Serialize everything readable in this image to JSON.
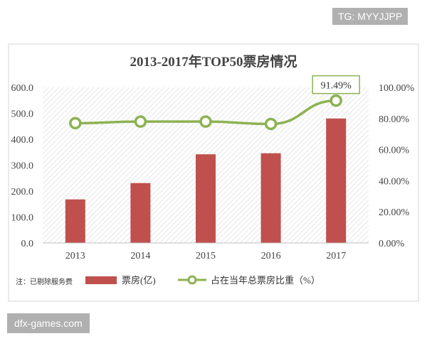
{
  "watermarks": {
    "top": "TG: MYYJJPP",
    "bottom": "dfx-games.com"
  },
  "chart_data": {
    "type": "bar+line",
    "title": "2013-2017年TOP50票房情况",
    "categories": [
      "2013",
      "2014",
      "2015",
      "2016",
      "2017"
    ],
    "series": [
      {
        "name": "票房(亿)",
        "type": "bar",
        "axis": "left",
        "values": [
          168,
          231,
          342,
          346,
          480
        ],
        "color": "#c0504d"
      },
      {
        "name": "占在当年总票房比重（%）",
        "type": "line",
        "axis": "right",
        "values": [
          0.77,
          0.78,
          0.78,
          0.765,
          0.9149
        ],
        "color": "#8db253"
      }
    ],
    "y_left": {
      "lim": [
        0,
        600
      ],
      "ticks": [
        "0.0",
        "100.0",
        "200.0",
        "300.0",
        "400.0",
        "500.0",
        "600.0"
      ]
    },
    "y_right": {
      "lim": [
        0,
        1.0
      ],
      "ticks": [
        "0.00%",
        "20.00%",
        "40.00%",
        "60.00%",
        "80.00%",
        "100.00%"
      ]
    },
    "annotation": {
      "text": "91.49%",
      "category": "2017",
      "value": 0.9149
    },
    "note": "注：已剔除服务费",
    "legend_position": "bottom",
    "grid": false,
    "plot_background": "hatched"
  }
}
